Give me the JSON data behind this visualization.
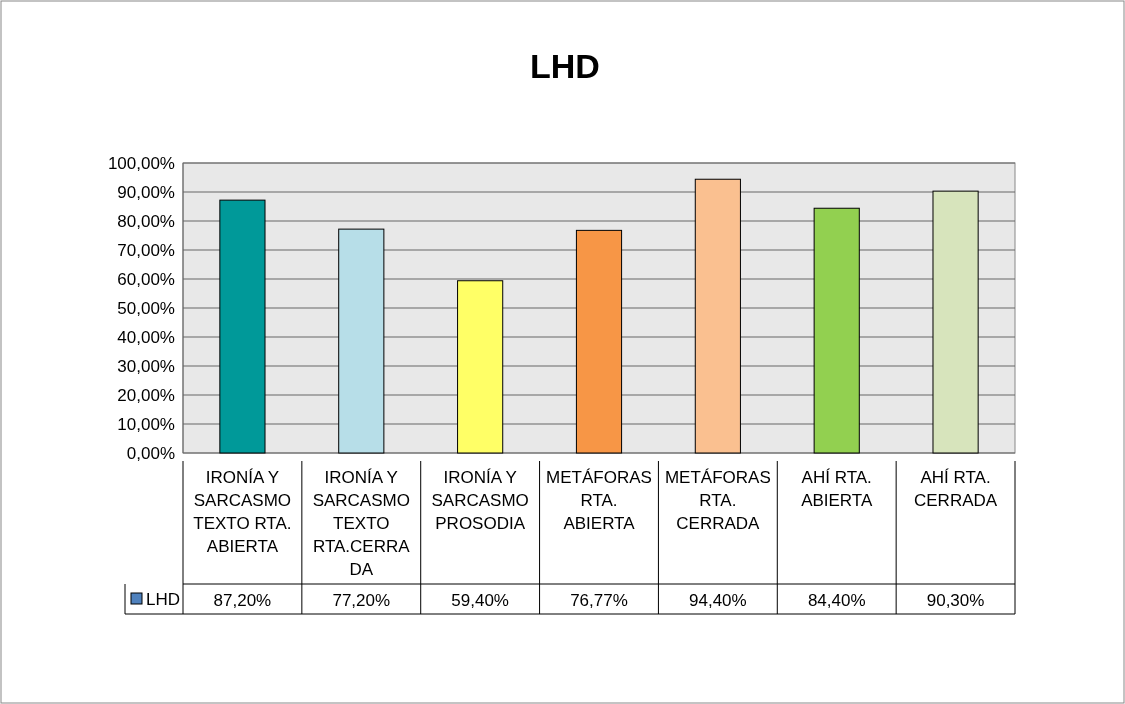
{
  "chart_data": {
    "type": "bar",
    "title": "LHD",
    "categories": [
      "IRONÍA Y SARCASMO TEXTO RTA. ABIERTA",
      "IRONÍA Y SARCASMO TEXTO RTA.CERRADA",
      "IRONÍA Y SARCASMO PROSODIA",
      "METÁFORAS RTA. ABIERTA",
      "METÁFORAS RTA. CERRADA",
      "AHÍ RTA. ABIERTA",
      "AHÍ RTA. CERRADA"
    ],
    "series": [
      {
        "name": "LHD",
        "color": "#4f81bd",
        "colors": [
          "#009999",
          "#b7dee8",
          "#ffff66",
          "#f79646",
          "#fac090",
          "#92d050",
          "#d7e4bc"
        ],
        "values": [
          87.2,
          77.2,
          59.4,
          76.77,
          94.4,
          84.4,
          90.3
        ],
        "value_labels": [
          "87,20%",
          "77,20%",
          "59,40%",
          "76,77%",
          "94,40%",
          "84,40%",
          "90,30%"
        ]
      }
    ],
    "ylim": [
      0,
      100
    ],
    "yticks": [
      {
        "value": 0,
        "label": "0,00%"
      },
      {
        "value": 10,
        "label": "10,00%"
      },
      {
        "value": 20,
        "label": "20,00%"
      },
      {
        "value": 30,
        "label": "30,00%"
      },
      {
        "value": 40,
        "label": "40,00%"
      },
      {
        "value": 50,
        "label": "50,00%"
      },
      {
        "value": 60,
        "label": "60,00%"
      },
      {
        "value": 70,
        "label": "70,00%"
      },
      {
        "value": 80,
        "label": "80,00%"
      },
      {
        "value": 90,
        "label": "90,00%"
      },
      {
        "value": 100,
        "label": "100,00%"
      }
    ],
    "grid": "y",
    "legend": "bottom left"
  }
}
